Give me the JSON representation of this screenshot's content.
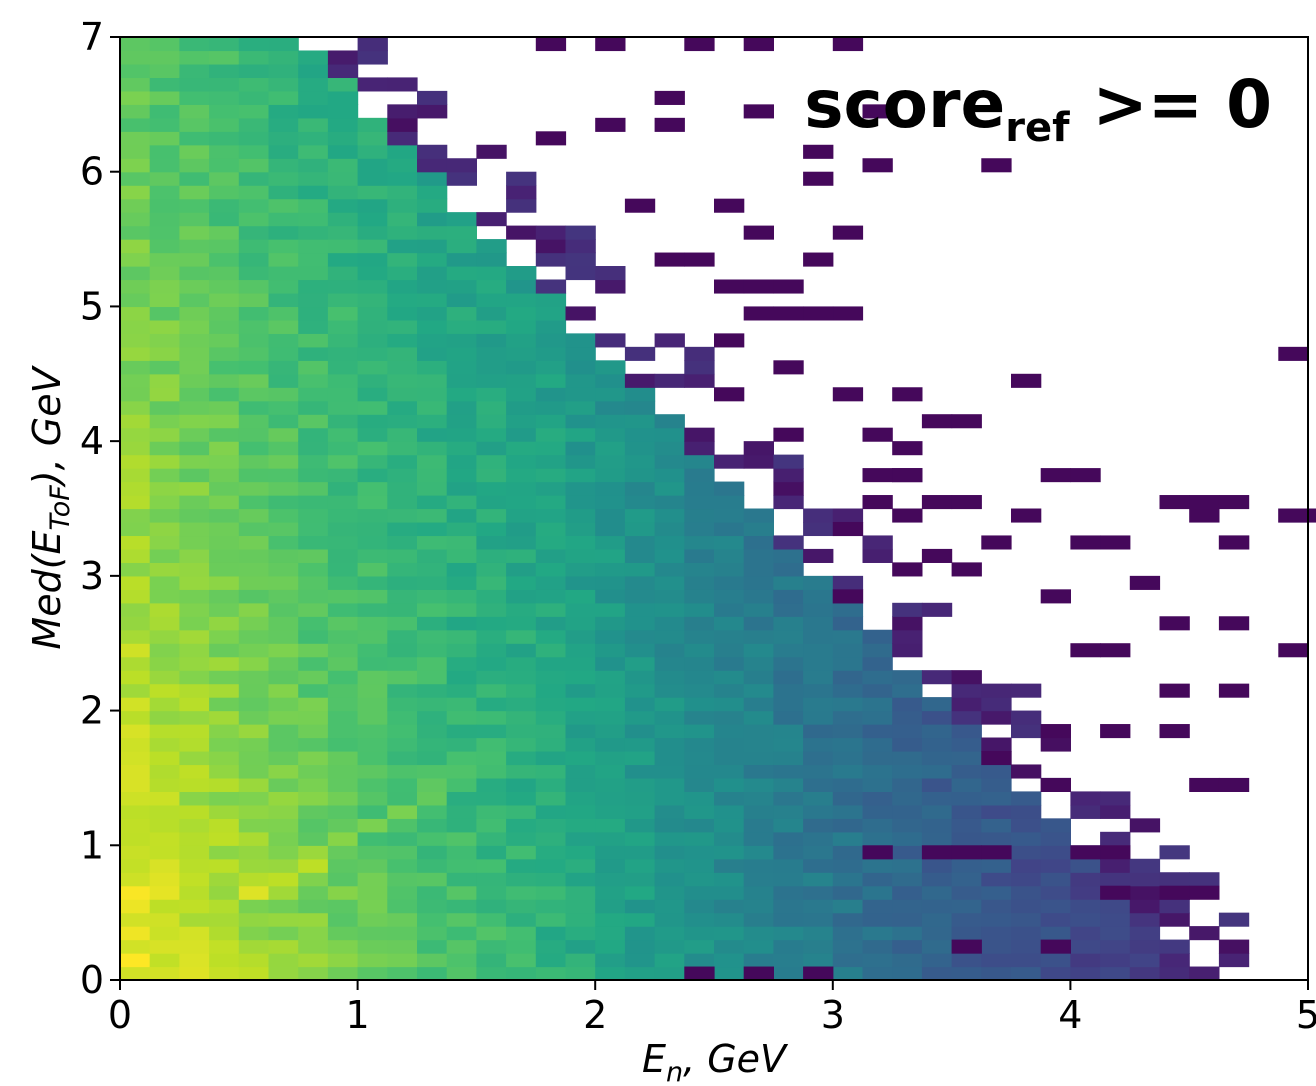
{
  "chart_data": {
    "type": "heatmap",
    "title": "",
    "colormap": "viridis",
    "xlim": [
      0,
      5
    ],
    "ylim": [
      0,
      7
    ],
    "bins_x": 40,
    "bins_y": 70,
    "x_ticks": [
      "0",
      "1",
      "2",
      "3",
      "4",
      "5"
    ],
    "y_ticks": [
      "0",
      "1",
      "2",
      "3",
      "4",
      "5",
      "6",
      "7"
    ],
    "xlabel": {
      "main": "E",
      "sub": "n",
      "rest": ", GeV"
    },
    "ylabel": {
      "prefix": "Med(E",
      "sub": "ToF",
      "suffix": "), GeV"
    },
    "annotation": {
      "main": "score",
      "sub": "ref",
      "rest": " >= 0"
    },
    "band_cells": [
      [
        0.55,
        0.6,
        0.95
      ],
      [
        0.65,
        0.7,
        0.9
      ],
      [
        0.75,
        0.8,
        0.9
      ],
      [
        0.85,
        0.9,
        0.85
      ],
      [
        0.95,
        1.0,
        0.82
      ],
      [
        1.05,
        1.1,
        0.8
      ],
      [
        1.15,
        1.2,
        0.8
      ],
      [
        1.25,
        1.3,
        0.76
      ],
      [
        1.35,
        1.4,
        0.75
      ],
      [
        1.45,
        1.5,
        0.72
      ],
      [
        1.55,
        1.6,
        0.7
      ],
      [
        1.65,
        1.7,
        0.66
      ],
      [
        1.75,
        1.8,
        0.64
      ],
      [
        1.85,
        1.9,
        0.62
      ],
      [
        1.95,
        2.0,
        0.6
      ]
    ],
    "sparse_cells": [
      [
        2.43,
        0.05
      ],
      [
        2.68,
        0.05
      ],
      [
        2.93,
        0.05
      ],
      [
        3.55,
        0.25
      ],
      [
        3.93,
        0.25
      ],
      [
        4.18,
        0.65
      ],
      [
        4.43,
        0.65
      ],
      [
        4.55,
        0.65
      ],
      [
        3.18,
        0.95
      ],
      [
        3.38,
        0.95
      ],
      [
        3.55,
        0.95
      ],
      [
        3.68,
        0.95
      ],
      [
        4.05,
        0.95
      ],
      [
        4.18,
        0.95
      ],
      [
        4.55,
        1.45
      ],
      [
        4.68,
        1.45
      ],
      [
        3.93,
        1.45
      ],
      [
        3.68,
        1.6
      ],
      [
        4.18,
        1.9
      ],
      [
        4.43,
        1.9
      ],
      [
        3.93,
        1.9
      ],
      [
        4.43,
        2.1
      ],
      [
        4.68,
        2.1
      ],
      [
        4.05,
        2.45
      ],
      [
        4.18,
        2.45
      ],
      [
        4.93,
        2.45
      ],
      [
        4.43,
        2.6
      ],
      [
        4.68,
        2.6
      ],
      [
        3.93,
        2.85
      ],
      [
        4.05,
        3.25
      ],
      [
        4.18,
        3.25
      ],
      [
        4.3,
        2.95
      ],
      [
        4.68,
        3.25
      ],
      [
        3.68,
        3.25
      ],
      [
        4.55,
        3.45
      ],
      [
        4.93,
        3.45
      ],
      [
        3.43,
        3.15
      ],
      [
        3.8,
        3.45
      ],
      [
        3.55,
        3.05
      ],
      [
        3.05,
        3.35
      ],
      [
        3.3,
        3.45
      ],
      [
        3.43,
        3.55
      ],
      [
        3.18,
        3.75
      ],
      [
        3.3,
        3.75
      ],
      [
        4.68,
        3.25
      ],
      [
        3.43,
        4.15
      ],
      [
        3.55,
        4.15
      ],
      [
        3.8,
        4.45
      ],
      [
        3.3,
        3.9
      ],
      [
        3.05,
        4.35
      ],
      [
        3.3,
        4.35
      ],
      [
        3.55,
        3.5
      ],
      [
        3.3,
        3.75
      ],
      [
        4.43,
        3.5
      ],
      [
        4.55,
        3.5
      ],
      [
        4.68,
        3.5
      ],
      [
        3.93,
        3.7
      ],
      [
        4.05,
        3.7
      ],
      [
        3.18,
        3.55
      ],
      [
        4.93,
        4.65
      ],
      [
        4.93,
        3.4
      ],
      [
        5.05,
        3.4
      ],
      [
        3.05,
        4.95
      ],
      [
        2.93,
        4.95
      ],
      [
        2.8,
        4.95
      ],
      [
        2.68,
        4.95
      ],
      [
        2.55,
        5.15
      ],
      [
        2.68,
        5.15
      ],
      [
        2.8,
        5.15
      ],
      [
        2.93,
        5.35
      ],
      [
        2.68,
        5.55
      ],
      [
        3.05,
        5.55
      ],
      [
        2.55,
        5.75
      ],
      [
        2.93,
        5.95
      ],
      [
        3.18,
        6.05
      ],
      [
        3.68,
        6.05
      ],
      [
        2.68,
        6.95
      ],
      [
        3.05,
        6.95
      ],
      [
        2.43,
        6.95
      ],
      [
        2.05,
        6.95
      ],
      [
        1.8,
        6.95
      ],
      [
        2.3,
        6.55
      ],
      [
        2.68,
        6.45
      ],
      [
        3.18,
        6.45
      ],
      [
        2.05,
        6.35
      ],
      [
        2.3,
        6.35
      ],
      [
        1.8,
        6.25
      ],
      [
        2.93,
        6.15
      ],
      [
        2.18,
        5.75
      ],
      [
        2.43,
        5.35
      ],
      [
        2.3,
        5.35
      ],
      [
        2.55,
        4.35
      ],
      [
        2.8,
        4.55
      ],
      [
        2.55,
        4.75
      ],
      [
        2.8,
        4.05
      ],
      [
        3.18,
        4.05
      ],
      [
        3.3,
        3.05
      ],
      [
        3.05,
        2.85
      ]
    ]
  }
}
